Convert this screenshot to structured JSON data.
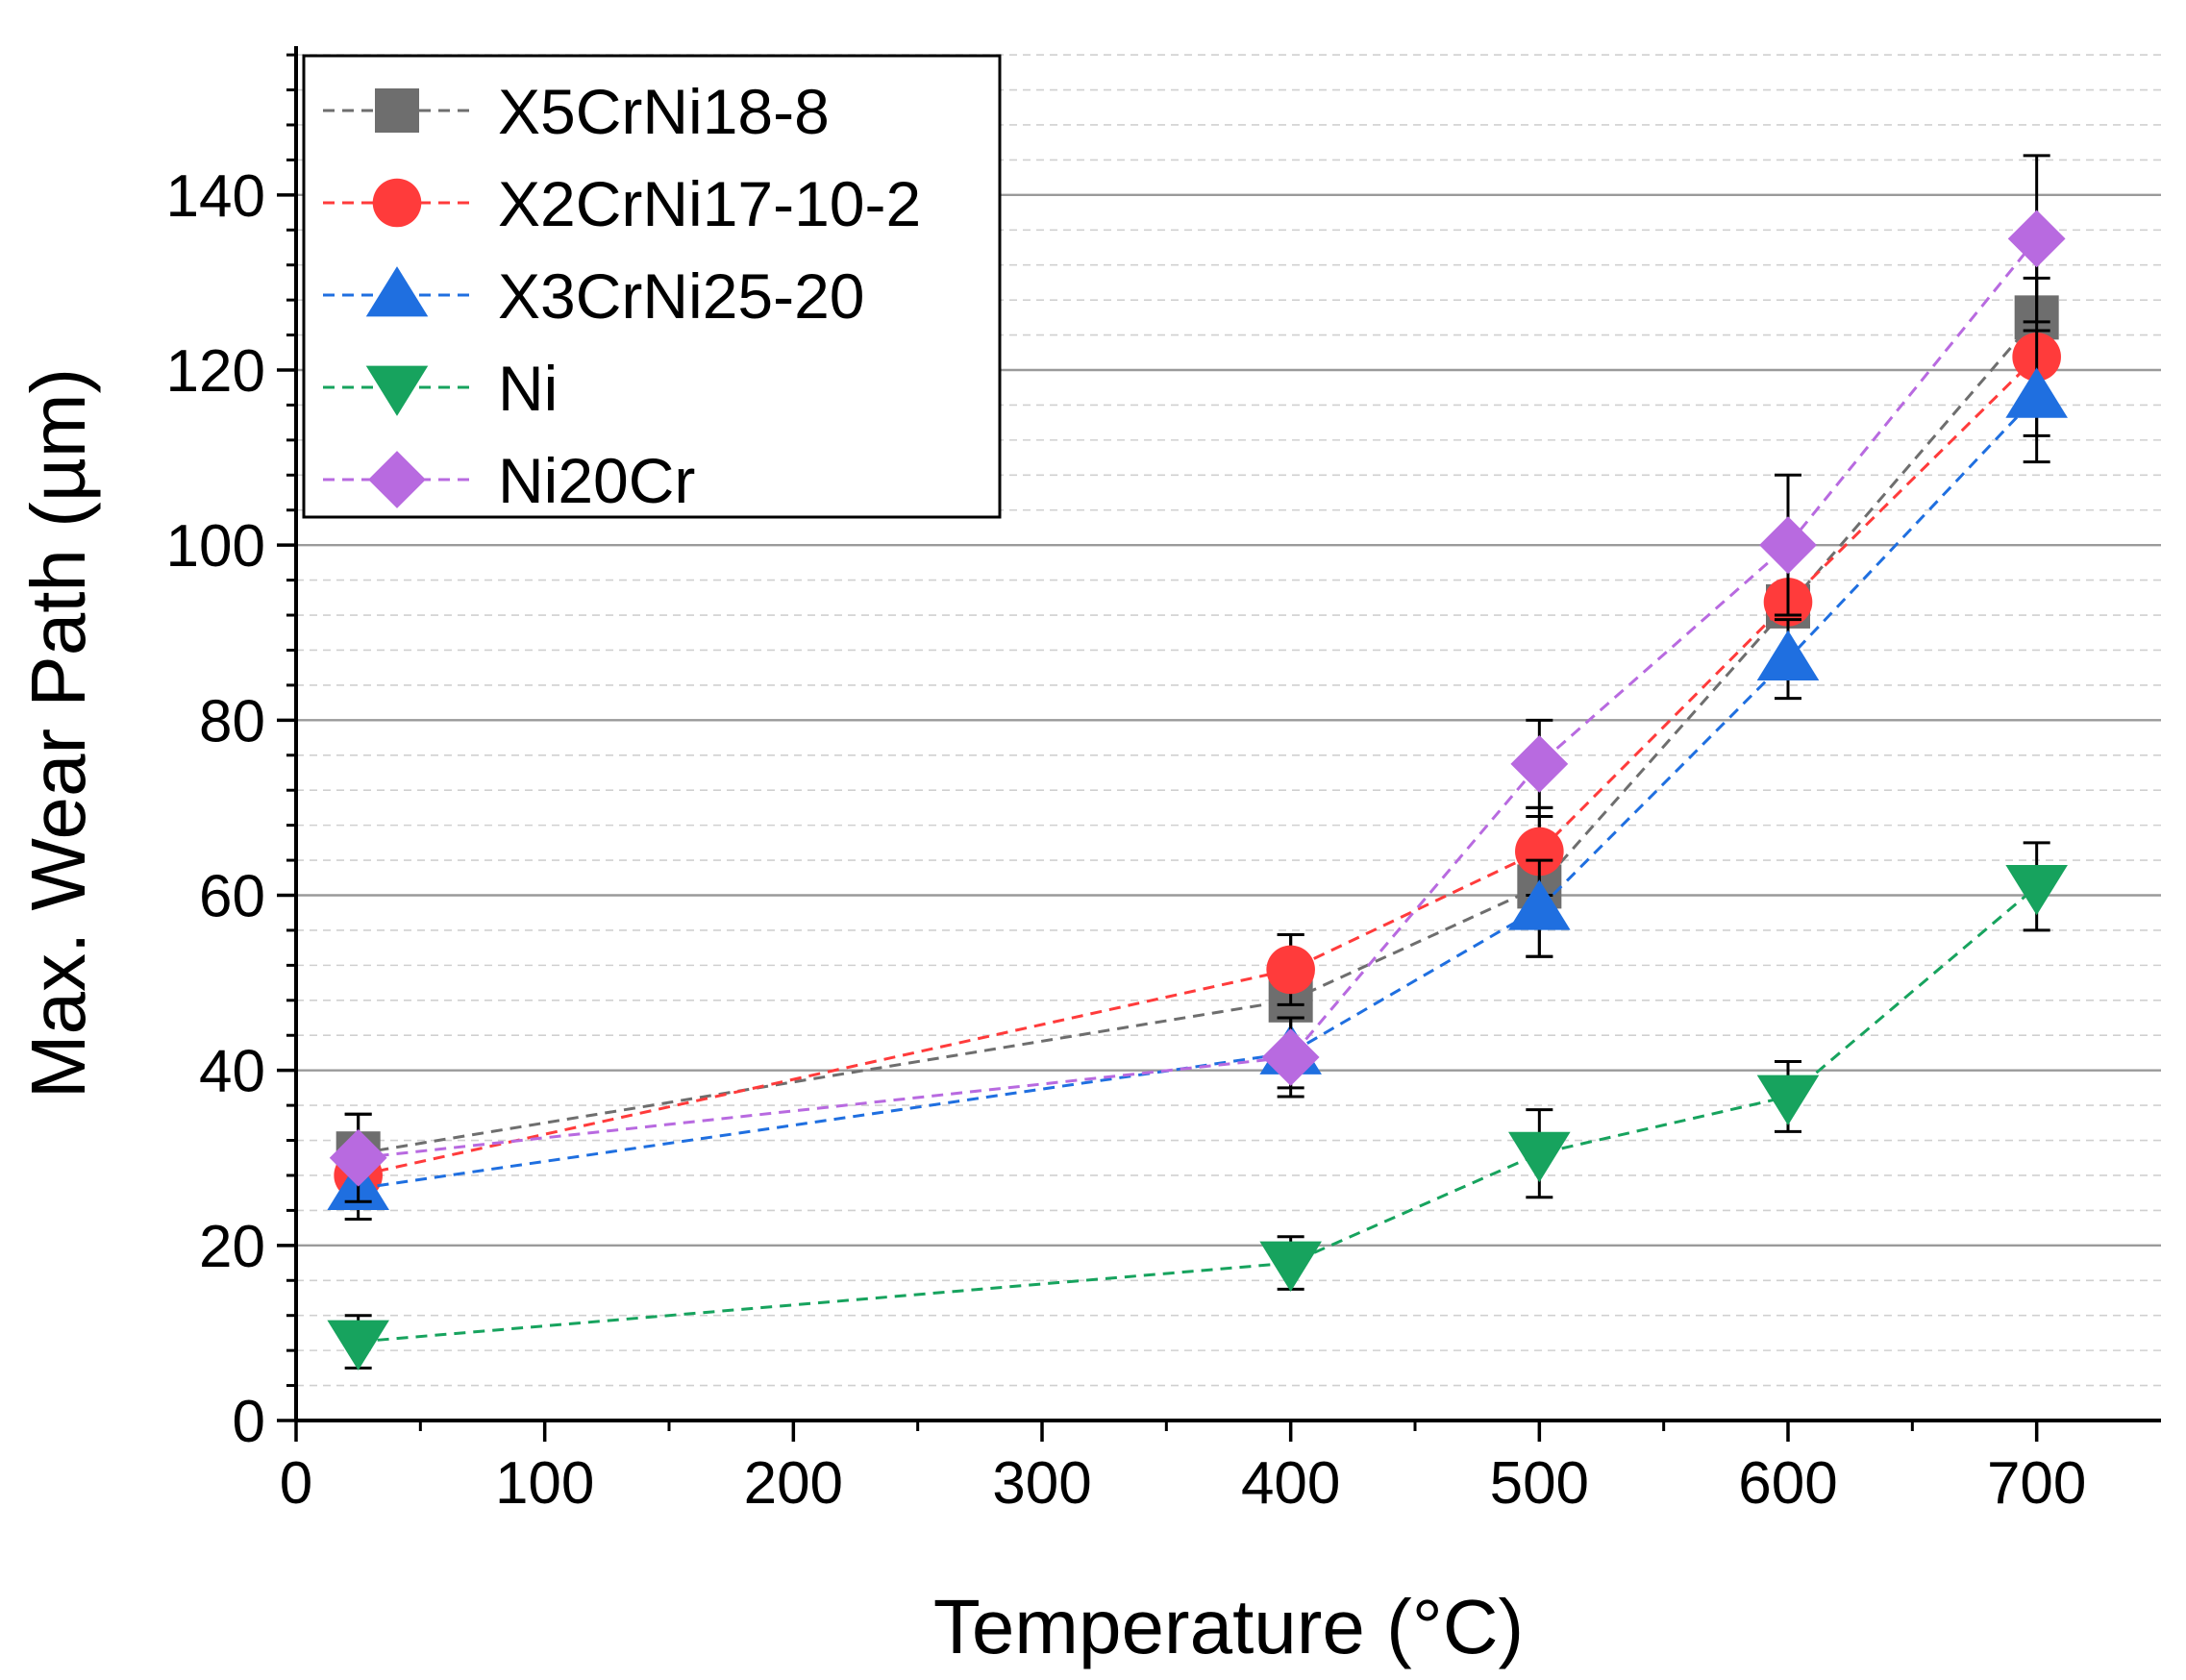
{
  "chart_data": {
    "type": "line",
    "xlabel": "Temperature (°C)",
    "ylabel": "Max. Wear Path (µm)",
    "xlim": [
      0,
      750
    ],
    "ylim": [
      0,
      157
    ],
    "x_ticks": [
      0,
      100,
      200,
      300,
      400,
      500,
      600,
      700
    ],
    "y_ticks": [
      0,
      20,
      40,
      60,
      80,
      100,
      120,
      140
    ],
    "grid": "horizontal major solid, minor dashed",
    "legend_position": "top-left",
    "x": [
      25,
      400,
      500,
      600,
      700
    ],
    "series": [
      {
        "name": "X5CrNi18-8",
        "marker": "square",
        "color": "#6e6e6e",
        "values": [
          30.5,
          48,
          61,
          93,
          126
        ],
        "errors": [
          4.5,
          7.5,
          8,
          8,
          9
        ]
      },
      {
        "name": "X2CrNi17-10-2",
        "marker": "circle",
        "color": "#ff3b3b",
        "values": [
          28,
          51.5,
          65,
          93.5,
          121.5
        ],
        "errors": [
          3.5,
          4,
          5,
          7,
          9
        ]
      },
      {
        "name": "X3CrNi25-20",
        "marker": "triangle-up",
        "color": "#1f6fe0",
        "values": [
          26.5,
          42,
          58.5,
          87,
          117
        ],
        "errors": [
          3.5,
          4,
          5.5,
          4.5,
          7.5
        ]
      },
      {
        "name": "Ni",
        "marker": "triangle-down",
        "color": "#17a35e",
        "values": [
          9,
          18,
          30.5,
          37,
          61
        ],
        "errors": [
          3,
          3,
          5,
          4,
          5
        ]
      },
      {
        "name": "Ni20Cr",
        "marker": "diamond",
        "color": "#b86ae0",
        "values": [
          30,
          41.5,
          75,
          100,
          135
        ],
        "errors": [
          5,
          4.5,
          5,
          8,
          9.5
        ]
      }
    ]
  }
}
